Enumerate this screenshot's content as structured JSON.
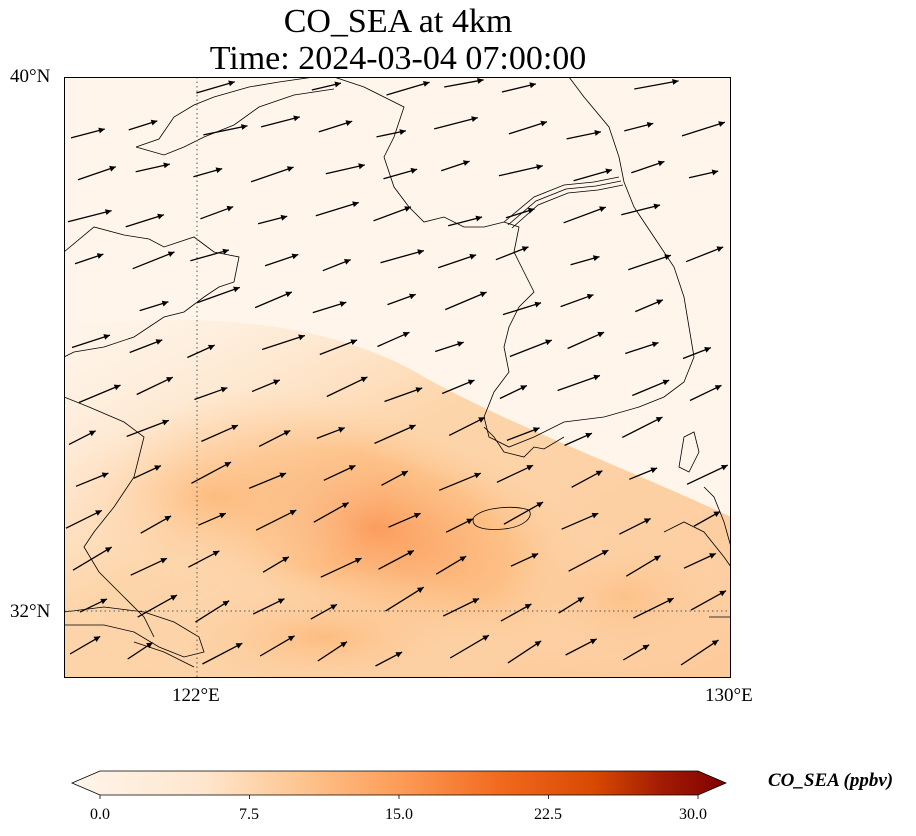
{
  "title": {
    "line1": "CO_SEA at 4km",
    "line2": "Time: 2024-03-04 07:00:00"
  },
  "map": {
    "extent": {
      "lon": [
        120,
        130
      ],
      "lat": [
        31,
        40
      ]
    },
    "gridlines": {
      "lon": [
        122
      ],
      "lat": [
        32
      ],
      "style": "dotted"
    },
    "lat_ticks": [
      {
        "value": 40,
        "label": "40°N"
      },
      {
        "value": 32,
        "label": "32°N"
      }
    ],
    "lon_ticks": [
      {
        "value": 122,
        "label": "122°E"
      },
      {
        "value": 130,
        "label": "130°E"
      }
    ],
    "field_name": "CO_SEA",
    "units": "ppbv",
    "vectors": "wind arrows, predominantly west-southwesterly flow toward east-northeast"
  },
  "colorbar": {
    "label": "CO_SEA (ppbv)",
    "min": 0.0,
    "max": 30.0,
    "ticks": [
      "0.0",
      "7.5",
      "15.0",
      "22.5",
      "30.0"
    ],
    "extend": "both",
    "colormap": [
      "#fff5eb",
      "#fdd9b1",
      "#fdab67",
      "#f16913",
      "#c73e02",
      "#7f2704"
    ]
  }
}
